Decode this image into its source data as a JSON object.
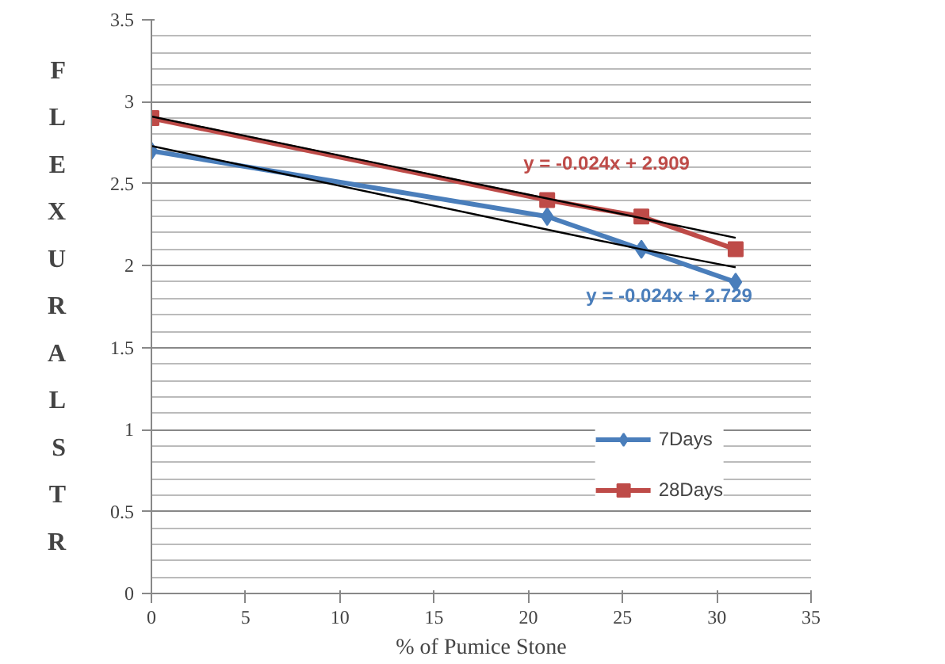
{
  "chart_data": {
    "type": "line",
    "xlabel": "% of Pumice Stone",
    "ylabel": "FLEXURAL STR",
    "x": [
      0,
      21,
      26,
      31
    ],
    "series": [
      {
        "name": "7Days",
        "color": "#4a7ebb",
        "values": [
          2.7,
          2.3,
          2.1,
          1.9
        ],
        "marker": "diamond"
      },
      {
        "name": "28Days",
        "color": "#be4b48",
        "values": [
          2.9,
          2.4,
          2.3,
          2.1
        ],
        "marker": "square"
      },
      {
        "color": "#000000",
        "values": [
          2.73,
          2.22,
          2.1,
          1.99
        ],
        "marker": "none"
      },
      {
        "color": "#000000",
        "values": [
          2.91,
          2.41,
          2.29,
          2.17
        ],
        "marker": "none"
      }
    ],
    "annotations": [
      "y = -0.024x + 2.729",
      "y = -0.024x + 2.909"
    ],
    "xlim": [
      0,
      35
    ],
    "xticks": [
      0,
      5,
      10,
      15,
      20,
      25,
      30,
      35
    ],
    "ylim": [
      0,
      3.5
    ],
    "yticks": [
      0,
      0.5,
      1,
      1.5,
      2,
      2.5,
      3,
      3.5
    ],
    "grid": "y",
    "legend": "right"
  }
}
